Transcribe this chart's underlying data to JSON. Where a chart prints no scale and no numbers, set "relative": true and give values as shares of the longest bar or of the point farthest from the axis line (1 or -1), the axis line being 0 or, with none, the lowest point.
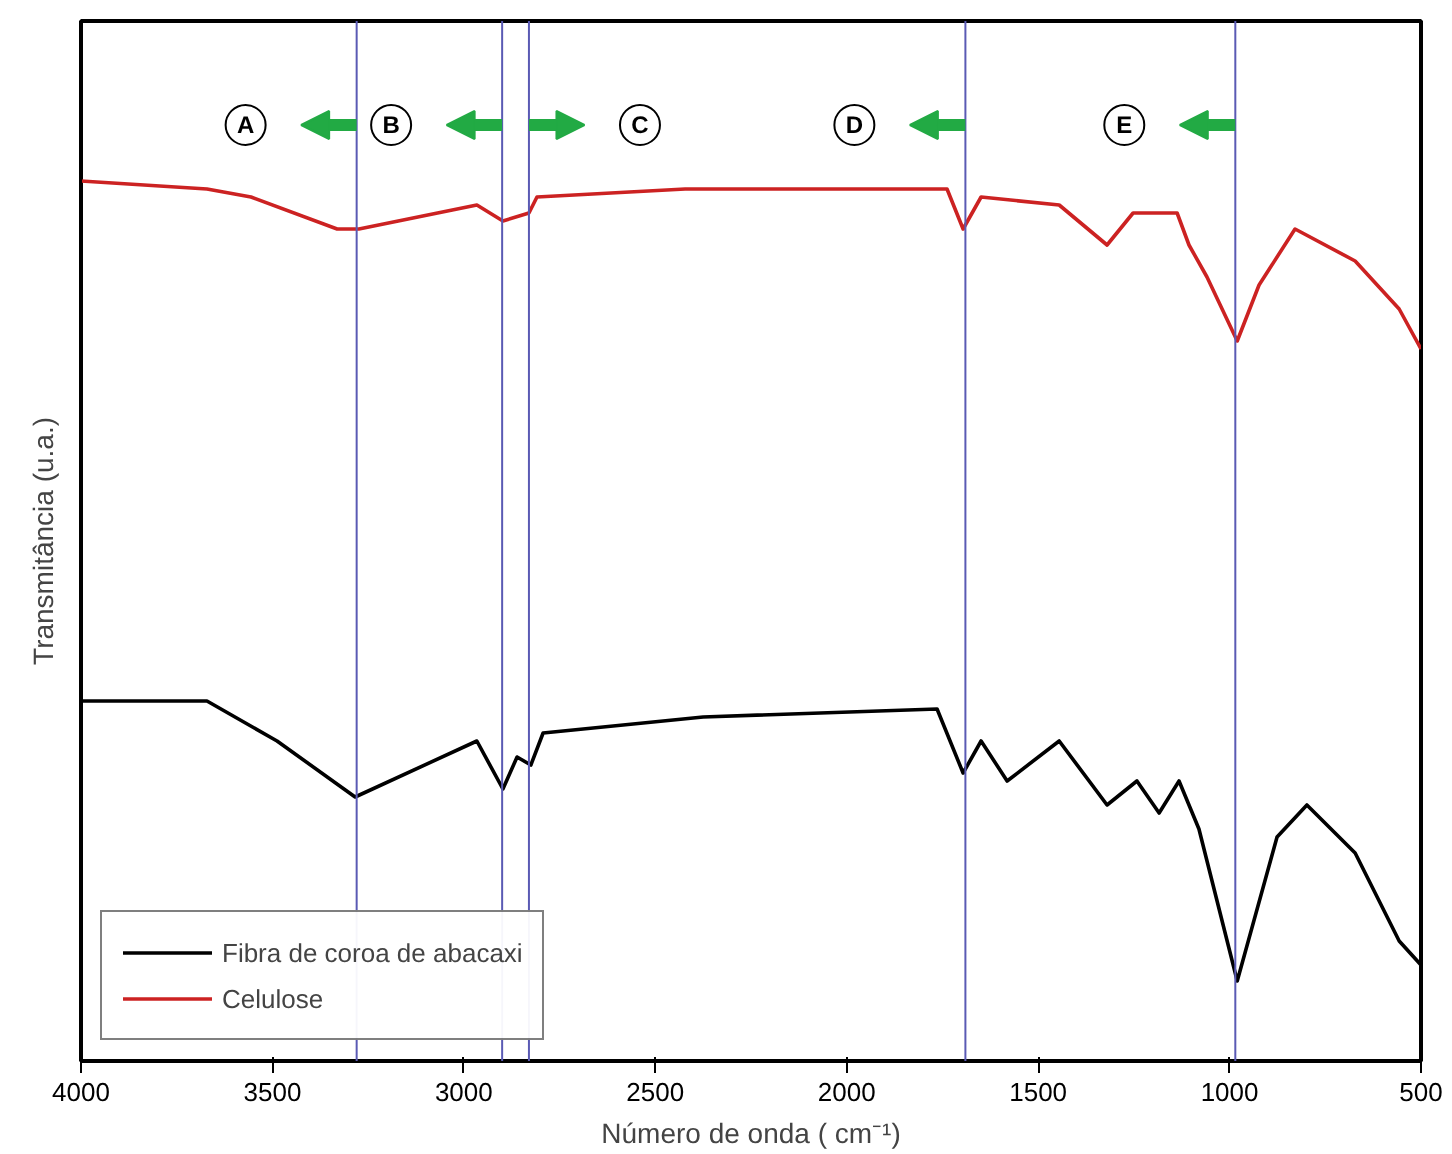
{
  "chart_data": {
    "type": "line",
    "relative": true,
    "xlabel": "Número de onda ( cm⁻¹)",
    "ylabel": "Transmitância (u.a.)",
    "xlim": [
      4000,
      500
    ],
    "xticks": [
      4000,
      3500,
      3000,
      2500,
      2000,
      1500,
      1000,
      500
    ],
    "tick_labels": "x",
    "grid": false,
    "legend": "bottom left",
    "line_style": "solid",
    "series": [
      {
        "name": "Fibra de coroa de abacaxi",
        "color": "#000000",
        "x": [
          4000,
          3671,
          3488,
          3284,
          2966,
          2898,
          2861,
          2825,
          2793,
          2375,
          1764,
          1696,
          1649,
          1581,
          1445,
          1320,
          1242,
          1184,
          1132,
          1080,
          980,
          876,
          798,
          672,
          557,
          500
        ],
        "values": [
          0.35,
          0.35,
          0.3,
          0.23,
          0.3,
          0.24,
          0.28,
          0.27,
          0.31,
          0.33,
          0.34,
          0.26,
          0.3,
          0.25,
          0.3,
          0.22,
          0.25,
          0.21,
          0.25,
          0.19,
          0,
          0.18,
          0.22,
          0.16,
          0.05,
          0.02
        ]
      },
      {
        "name": "Celulose",
        "color": "#cc2222",
        "x": [
          4000,
          3671,
          3556,
          3331,
          3274,
          2966,
          2898,
          2830,
          2809,
          2422,
          1738,
          1696,
          1649,
          1445,
          1320,
          1252,
          1174,
          1137,
          1106,
          1059,
          980,
          923,
          829,
          672,
          557,
          500
        ],
        "values": [
          1,
          0.99,
          0.98,
          0.94,
          0.94,
          0.97,
          0.95,
          0.96,
          0.98,
          0.99,
          0.99,
          0.94,
          0.98,
          0.97,
          0.92,
          0.96,
          0.96,
          0.96,
          0.92,
          0.88,
          0.8,
          0.87,
          0.94,
          0.9,
          0.84,
          0.79
        ]
      }
    ],
    "ref_lines": [
      {
        "axis": "x",
        "value": 3280,
        "color": "#5a5ab4"
      },
      {
        "axis": "x",
        "value": 2900,
        "color": "#5a5ab4"
      },
      {
        "axis": "x",
        "value": 2830,
        "color": "#5a5ab4"
      },
      {
        "axis": "x",
        "value": 1690,
        "color": "#5a5ab4"
      },
      {
        "axis": "x",
        "value": 985,
        "color": "#5a5ab4"
      }
    ],
    "annotations": [
      "A",
      "B",
      "C",
      "D",
      "E"
    ]
  }
}
